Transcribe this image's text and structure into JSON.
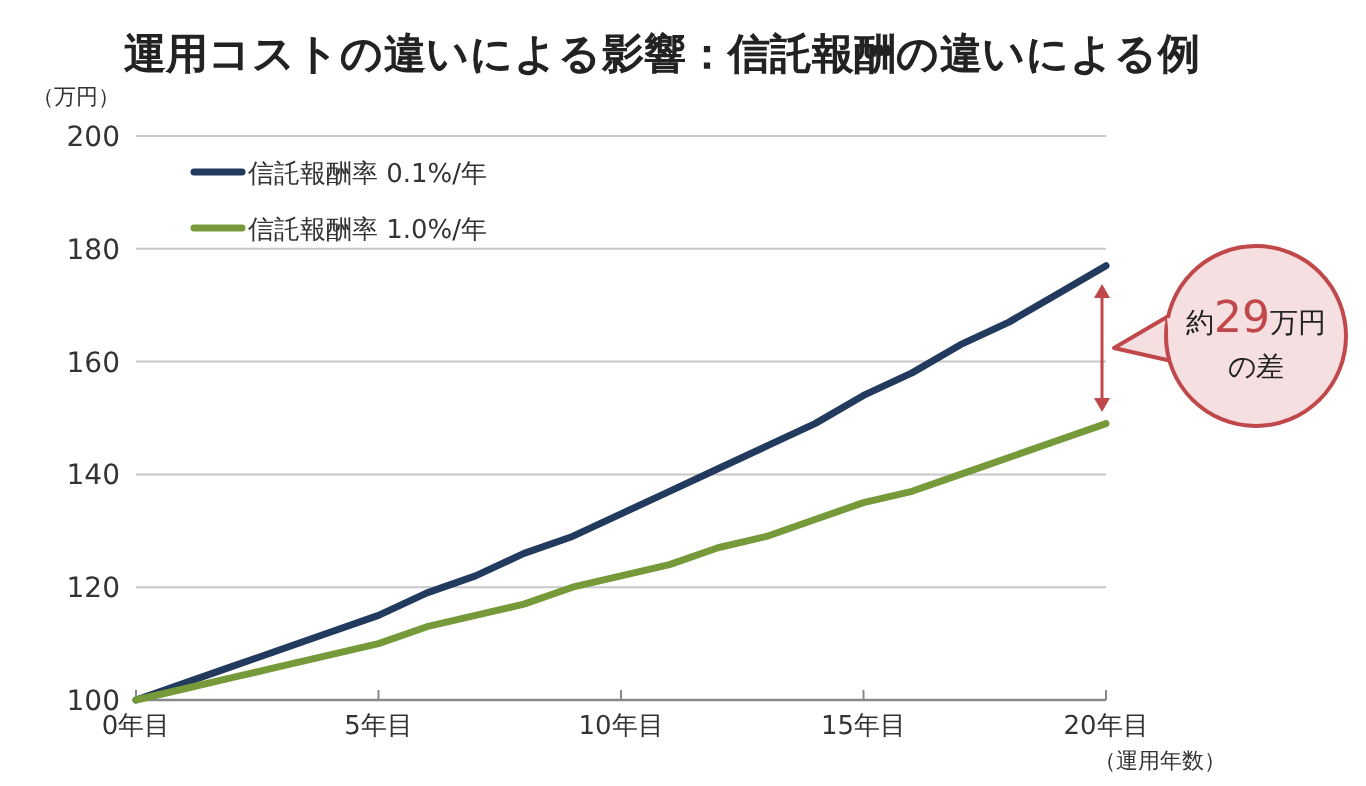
{
  "chart_data": {
    "type": "line",
    "title": "運用コストの違いによる影響：信託報酬の違いによる例",
    "xlabel": "（運用年数）",
    "ylabel": "（万円）",
    "x": [
      0,
      1,
      2,
      3,
      4,
      5,
      6,
      7,
      8,
      9,
      10,
      11,
      12,
      13,
      14,
      15,
      16,
      17,
      18,
      19,
      20
    ],
    "series": [
      {
        "name": "信託報酬率 0.1%/年",
        "color": "#223a5e",
        "values": [
          100,
          103,
          106,
          109,
          112,
          115,
          119,
          122,
          126,
          129,
          133,
          137,
          141,
          145,
          149,
          154,
          158,
          163,
          167,
          172,
          177
        ]
      },
      {
        "name": "信託報酬率 1.0%/年",
        "color": "#76993a",
        "values": [
          100,
          102,
          104,
          106,
          108,
          110,
          113,
          115,
          117,
          120,
          122,
          124,
          127,
          129,
          132,
          135,
          137,
          140,
          143,
          146,
          149
        ]
      }
    ],
    "xlim": [
      0,
      20
    ],
    "ylim": [
      100,
      200
    ],
    "xticks": [
      {
        "value": 0,
        "label": "0年目"
      },
      {
        "value": 5,
        "label": "5年目"
      },
      {
        "value": 10,
        "label": "10年目"
      },
      {
        "value": 15,
        "label": "15年目"
      },
      {
        "value": 20,
        "label": "20年目"
      }
    ],
    "yticks": [
      100,
      120,
      140,
      160,
      180,
      200
    ],
    "grid": "y",
    "legend": "top left",
    "line_style": "solid",
    "marker": "none",
    "annotations": [
      "約**29**万円の差"
    ]
  }
}
